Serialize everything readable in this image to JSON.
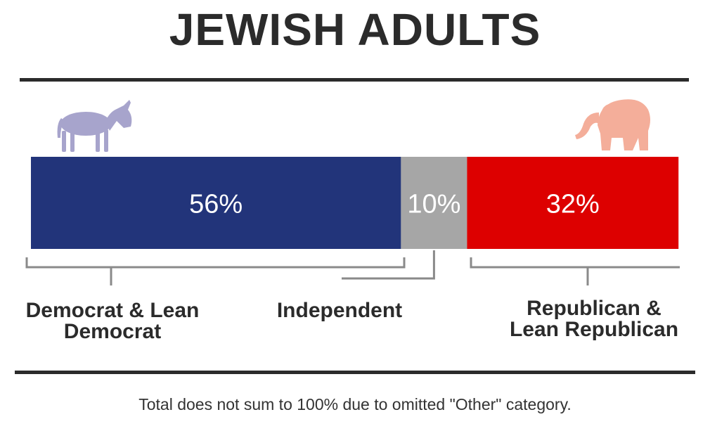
{
  "title": "JEWISH ADULTS",
  "footnote": "Total does not sum to 100% due to omitted \"Other\" category.",
  "icons": {
    "left": "donkey-icon",
    "right": "elephant-icon"
  },
  "colors": {
    "democrat": "#22347a",
    "independent": "#a6a6a6",
    "republican": "#dd0000",
    "donkey": "#a7a4cc",
    "elephant": "#f4ae9a",
    "bracket": "#8a8a8a",
    "text": "#2b2b2b"
  },
  "chart_data": {
    "type": "bar",
    "orientation": "horizontal-stacked",
    "title": "JEWISH ADULTS",
    "categories": [
      "Democrat & Lean Democrat",
      "Independent",
      "Republican & Lean Republican"
    ],
    "values": [
      56,
      10,
      32
    ],
    "value_labels": [
      "56%",
      "10%",
      "32%"
    ],
    "unit": "%",
    "xlabel": "",
    "ylabel": ""
  },
  "labels": {
    "democrat": [
      "Democrat & Lean",
      "Democrat"
    ],
    "independent": [
      "Independent"
    ],
    "republican": [
      "Republican &",
      "Lean Republican"
    ]
  }
}
